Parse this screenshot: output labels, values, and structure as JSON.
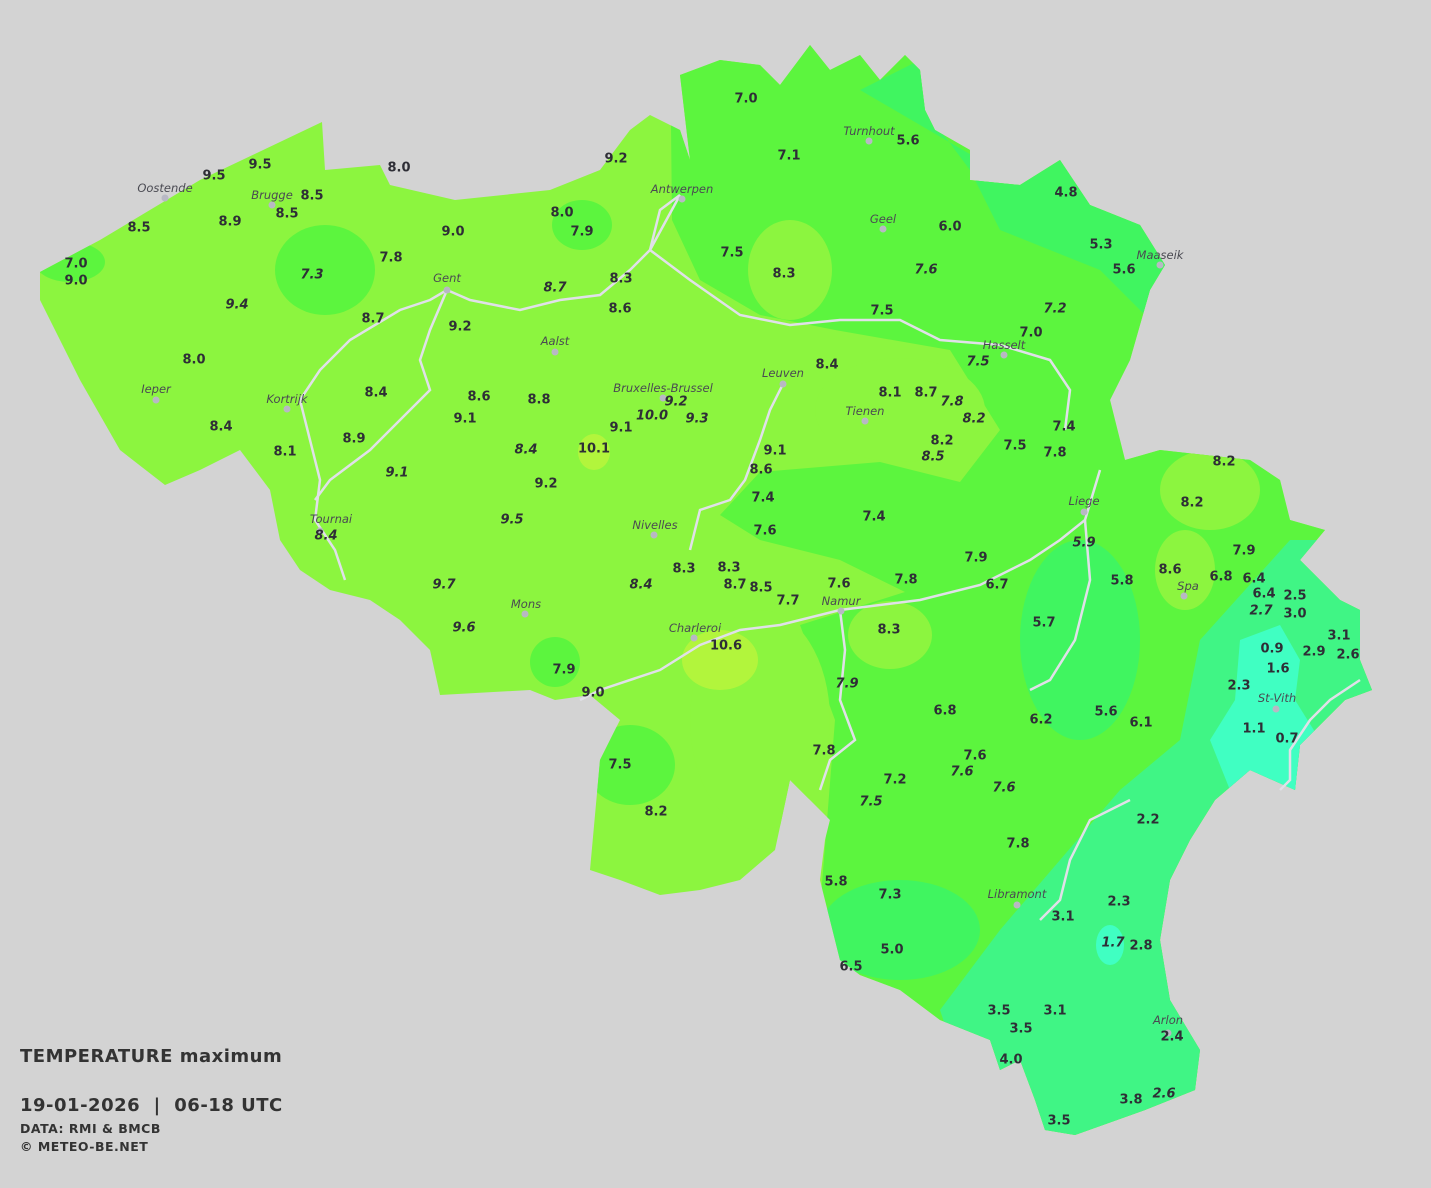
{
  "legend": {
    "title_main": "TEMPERATURE",
    "title_sub": "maximum",
    "date_period": "19-01-2026  |  06-18 UTC",
    "data_source": "DATA: RMI & BMCB",
    "copyright": "© METEO-BE.NET"
  },
  "colors": {
    "background": "#d3d3d3",
    "temp_9_to_11": "#8cf53f",
    "temp_10_plus": "#b2f53c",
    "temp_7_to_8": "#5cf53e",
    "temp_4_to_6": "#40f560",
    "temp_2_to_3": "#40f585",
    "temp_0_to_2": "#40ffc2",
    "rivers": "#e0e0e8",
    "value_text": "#2e2e36"
  },
  "cities": [
    {
      "name": "Oostende"
    },
    {
      "name": "Brugge"
    },
    {
      "name": "Antwerpen"
    },
    {
      "name": "Turnhout"
    },
    {
      "name": "Geel"
    },
    {
      "name": "Maaseik"
    },
    {
      "name": "Gent"
    },
    {
      "name": "Aalst"
    },
    {
      "name": "Hasselt"
    },
    {
      "name": "Leuven"
    },
    {
      "name": "Bruxelles-Brussel"
    },
    {
      "name": "Ieper"
    },
    {
      "name": "Kortrijk"
    },
    {
      "name": "Tienen"
    },
    {
      "name": "Liege"
    },
    {
      "name": "Tournai"
    },
    {
      "name": "Nivelles"
    },
    {
      "name": "Spa"
    },
    {
      "name": "Namur"
    },
    {
      "name": "Mons"
    },
    {
      "name": "Charleroi"
    },
    {
      "name": "St-Vith"
    },
    {
      "name": "Libramont"
    },
    {
      "name": "Arlon"
    }
  ],
  "stations": [
    {
      "v": "7.0"
    },
    {
      "v": "7.1"
    },
    {
      "v": "5.6"
    },
    {
      "v": "4.8"
    },
    {
      "v": "9.5"
    },
    {
      "v": "9.5"
    },
    {
      "v": "8.0"
    },
    {
      "v": "9.2"
    },
    {
      "v": "8.5"
    },
    {
      "v": "8.5"
    },
    {
      "v": "8.9"
    },
    {
      "v": "8.5"
    },
    {
      "v": "7.0"
    },
    {
      "v": "9.0"
    },
    {
      "v": "9.0"
    },
    {
      "v": "8.0"
    },
    {
      "v": "7.9"
    },
    {
      "v": "6.0"
    },
    {
      "v": "5.3"
    },
    {
      "v": "5.6"
    },
    {
      "v": "7.5"
    },
    {
      "v": "8.3"
    },
    {
      "v": "7.6",
      "italic": true
    },
    {
      "v": "7.3",
      "italic": true
    },
    {
      "v": "7.8"
    },
    {
      "v": "9.4",
      "italic": true
    },
    {
      "v": "8.3"
    },
    {
      "v": "8.7",
      "italic": true
    },
    {
      "v": "8.6"
    },
    {
      "v": "8.7"
    },
    {
      "v": "9.2"
    },
    {
      "v": "7.5"
    },
    {
      "v": "7.2",
      "italic": true
    },
    {
      "v": "7.0"
    },
    {
      "v": "7.5",
      "italic": true
    },
    {
      "v": "8.0"
    },
    {
      "v": "8.4"
    },
    {
      "v": "8.1"
    },
    {
      "v": "8.7"
    },
    {
      "v": "8.4"
    },
    {
      "v": "8.6"
    },
    {
      "v": "8.8"
    },
    {
      "v": "9.2",
      "italic": true
    },
    {
      "v": "10.0",
      "italic": true
    },
    {
      "v": "9.3",
      "italic": true
    },
    {
      "v": "7.8",
      "italic": true
    },
    {
      "v": "8.2",
      "italic": true
    },
    {
      "v": "9.1"
    },
    {
      "v": "9.1"
    },
    {
      "v": "8.4"
    },
    {
      "v": "7.4"
    },
    {
      "v": "8.1"
    },
    {
      "v": "8.9"
    },
    {
      "v": "8.4",
      "italic": true
    },
    {
      "v": "10.1"
    },
    {
      "v": "9.1"
    },
    {
      "v": "8.2"
    },
    {
      "v": "8.5",
      "italic": true
    },
    {
      "v": "7.5"
    },
    {
      "v": "7.8"
    },
    {
      "v": "9.1",
      "italic": true
    },
    {
      "v": "8.6"
    },
    {
      "v": "9.2"
    },
    {
      "v": "8.2"
    },
    {
      "v": "8.2"
    },
    {
      "v": "7.4"
    },
    {
      "v": "7.4"
    },
    {
      "v": "9.5",
      "italic": true
    },
    {
      "v": "7.6"
    },
    {
      "v": "8.4",
      "italic": true
    },
    {
      "v": "5.9",
      "italic": true
    },
    {
      "v": "7.9"
    },
    {
      "v": "7.9"
    },
    {
      "v": "5.8"
    },
    {
      "v": "8.6"
    },
    {
      "v": "6.8"
    },
    {
      "v": "6.4"
    },
    {
      "v": "6.4"
    },
    {
      "v": "2.5"
    },
    {
      "v": "2.7",
      "italic": true
    },
    {
      "v": "3.0"
    },
    {
      "v": "8.3"
    },
    {
      "v": "8.3"
    },
    {
      "v": "8.7"
    },
    {
      "v": "8.5"
    },
    {
      "v": "7.6"
    },
    {
      "v": "7.8"
    },
    {
      "v": "6.7"
    },
    {
      "v": "9.7",
      "italic": true
    },
    {
      "v": "8.4",
      "italic": true
    },
    {
      "v": "7.7"
    },
    {
      "v": "5.7"
    },
    {
      "v": "3.1"
    },
    {
      "v": "0.9"
    },
    {
      "v": "2.9"
    },
    {
      "v": "2.6"
    },
    {
      "v": "9.6",
      "italic": true
    },
    {
      "v": "8.3"
    },
    {
      "v": "10.6"
    },
    {
      "v": "1.6"
    },
    {
      "v": "7.9"
    },
    {
      "v": "7.9",
      "italic": true
    },
    {
      "v": "2.3"
    },
    {
      "v": "9.0"
    },
    {
      "v": "6.8"
    },
    {
      "v": "5.6"
    },
    {
      "v": "6.1"
    },
    {
      "v": "6.2"
    },
    {
      "v": "1.1"
    },
    {
      "v": "0.7"
    },
    {
      "v": "7.8"
    },
    {
      "v": "7.6"
    },
    {
      "v": "7.6",
      "italic": true
    },
    {
      "v": "7.5"
    },
    {
      "v": "7.2"
    },
    {
      "v": "7.6",
      "italic": true
    },
    {
      "v": "7.5",
      "italic": true
    },
    {
      "v": "8.2"
    },
    {
      "v": "2.2"
    },
    {
      "v": "7.8"
    },
    {
      "v": "5.8"
    },
    {
      "v": "7.3"
    },
    {
      "v": "2.3"
    },
    {
      "v": "3.1"
    },
    {
      "v": "1.7",
      "italic": true
    },
    {
      "v": "2.8"
    },
    {
      "v": "5.0"
    },
    {
      "v": "6.5"
    },
    {
      "v": "3.5"
    },
    {
      "v": "3.1"
    },
    {
      "v": "3.5"
    },
    {
      "v": "2.4"
    },
    {
      "v": "4.0"
    },
    {
      "v": "3.8"
    },
    {
      "v": "2.6",
      "italic": true
    },
    {
      "v": "3.5"
    }
  ]
}
